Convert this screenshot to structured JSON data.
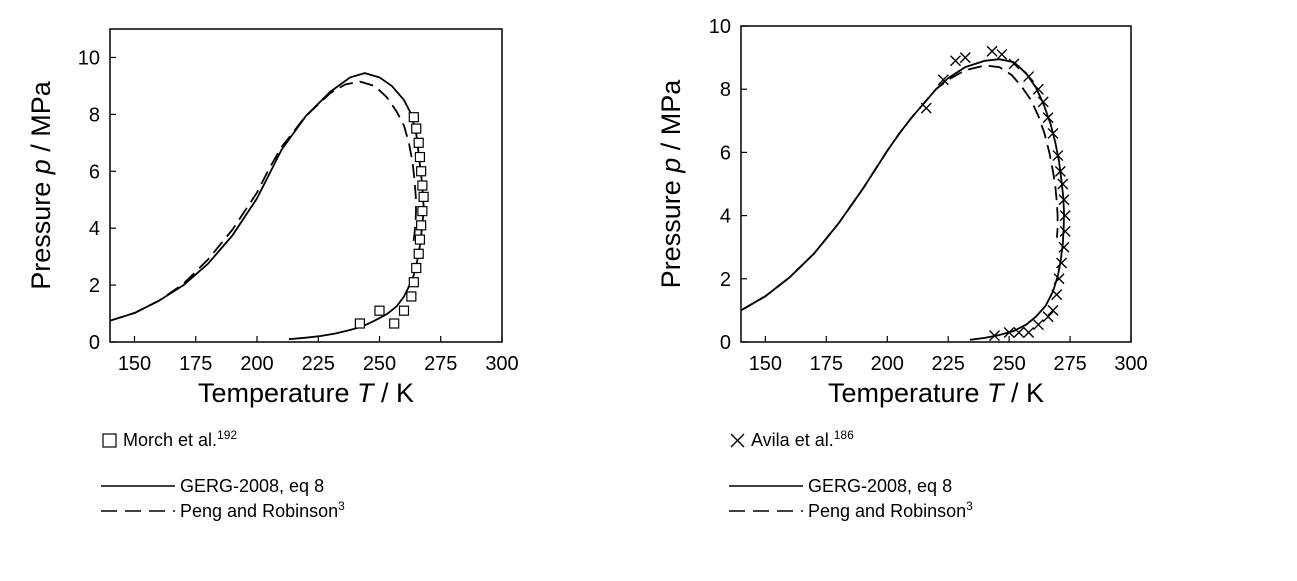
{
  "chart_data": [
    {
      "type": "line",
      "xlabel_prefix": "Temperature ",
      "xlabel_symbol": "T",
      "xlabel_unit": " / K",
      "ylabel_prefix": "Pressure ",
      "ylabel_symbol": "p",
      "ylabel_unit": " / MPa",
      "xlim": [
        140,
        300
      ],
      "ylim": [
        0,
        11
      ],
      "xticks": [
        "150",
        "175",
        "200",
        "225",
        "250",
        "275",
        "300"
      ],
      "yticks": [
        "0",
        "2",
        "4",
        "6",
        "8",
        "10"
      ],
      "series": [
        {
          "style": "solid",
          "x": [
            140,
            150,
            160,
            170,
            180,
            190,
            200,
            205,
            210,
            220,
            230,
            238,
            244,
            250,
            255,
            260,
            263,
            265,
            266,
            267,
            267.5,
            268,
            267.8,
            267.3,
            266.7,
            266,
            265,
            264,
            262,
            260,
            257,
            253,
            248,
            243,
            238,
            232,
            226,
            220,
            213
          ],
          "y": [
            0.75,
            1.02,
            1.45,
            2.0,
            2.75,
            3.75,
            5.05,
            5.9,
            6.75,
            7.95,
            8.8,
            9.3,
            9.45,
            9.3,
            9.0,
            8.5,
            8.0,
            7.3,
            6.6,
            5.9,
            5.4,
            4.8,
            4.4,
            4.0,
            3.5,
            3.1,
            2.7,
            2.35,
            1.95,
            1.6,
            1.25,
            0.98,
            0.75,
            0.55,
            0.42,
            0.3,
            0.21,
            0.15,
            0.1
          ]
        },
        {
          "style": "dashed",
          "x": [
            140,
            150,
            160,
            170,
            180,
            190,
            200,
            205,
            210,
            220,
            230,
            236,
            242,
            248,
            253,
            257,
            260,
            262,
            263.5,
            264.3,
            264.8,
            264.9,
            264.7,
            264.3,
            263.8
          ],
          "y": [
            0.75,
            1.02,
            1.45,
            2.05,
            2.9,
            3.95,
            5.25,
            6.1,
            6.85,
            7.95,
            8.75,
            9.05,
            9.15,
            9.0,
            8.6,
            8.1,
            7.6,
            7.0,
            6.3,
            5.7,
            5.1,
            4.6,
            4.2,
            3.8,
            3.5
          ]
        }
      ],
      "markers": {
        "shape": "square",
        "x": [
          264,
          265,
          266,
          266.5,
          267,
          267.5,
          268,
          267.5,
          267,
          266.5,
          266,
          265,
          264,
          263,
          260,
          256,
          250,
          242
        ],
        "y": [
          7.9,
          7.5,
          7.0,
          6.5,
          6.0,
          5.5,
          5.1,
          4.6,
          4.1,
          3.6,
          3.1,
          2.6,
          2.1,
          1.6,
          1.1,
          0.65,
          1.1,
          0.65
        ]
      },
      "legend": {
        "data_label": "Morch et al.",
        "data_ref": "192",
        "solid_label": "GERG-2008, eq 8",
        "dashed_label": "Peng and Robinson",
        "dashed_ref": "3"
      }
    },
    {
      "type": "line",
      "xlabel_prefix": "Temperature ",
      "xlabel_symbol": "T",
      "xlabel_unit": " / K",
      "ylabel_prefix": "Pressure ",
      "ylabel_symbol": "p",
      "ylabel_unit": " / MPa",
      "xlim": [
        140,
        300
      ],
      "ylim": [
        0,
        10
      ],
      "xticks": [
        "150",
        "175",
        "200",
        "225",
        "250",
        "275",
        "300"
      ],
      "yticks": [
        "0",
        "2",
        "4",
        "6",
        "8",
        "10"
      ],
      "series": [
        {
          "style": "solid",
          "x": [
            140,
            150,
            160,
            170,
            180,
            190,
            200,
            205,
            210,
            215,
            220,
            225,
            232,
            240,
            246,
            252,
            257,
            261,
            264,
            267,
            269,
            270.5,
            271.5,
            272.2,
            272.5,
            272.4,
            272,
            271.2,
            270,
            268,
            265,
            261,
            257,
            252,
            246,
            240,
            234
          ],
          "y": [
            1.0,
            1.45,
            2.05,
            2.8,
            3.75,
            4.85,
            6.05,
            6.6,
            7.1,
            7.55,
            8.0,
            8.35,
            8.7,
            8.9,
            8.95,
            8.85,
            8.5,
            8.05,
            7.55,
            6.9,
            6.3,
            5.7,
            5.1,
            4.6,
            4.1,
            3.6,
            3.1,
            2.6,
            2.1,
            1.6,
            1.15,
            0.8,
            0.55,
            0.35,
            0.22,
            0.13,
            0.07
          ]
        },
        {
          "style": "dashed",
          "x": [
            140,
            150,
            160,
            170,
            180,
            190,
            200,
            205,
            210,
            215,
            220,
            225,
            232,
            240,
            246,
            251,
            255,
            259,
            262,
            264.5,
            266.5,
            268,
            269,
            269.6,
            269.9,
            269.9,
            269.6
          ],
          "y": [
            1.0,
            1.45,
            2.05,
            2.8,
            3.75,
            4.85,
            6.05,
            6.6,
            7.1,
            7.55,
            8.0,
            8.3,
            8.6,
            8.75,
            8.7,
            8.45,
            8.1,
            7.65,
            7.15,
            6.6,
            6.0,
            5.4,
            4.9,
            4.4,
            4.0,
            3.6,
            3.3
          ]
        }
      ],
      "markers": {
        "shape": "cross",
        "x": [
          216,
          223,
          228,
          232,
          243,
          247,
          252,
          258,
          262,
          264,
          266,
          268,
          270,
          271,
          272,
          272.5,
          273,
          273,
          272.5,
          271.5,
          270.5,
          269.5,
          268,
          266,
          262,
          258,
          254,
          250,
          244
        ],
        "y": [
          7.4,
          8.3,
          8.9,
          9.0,
          9.2,
          9.1,
          8.8,
          8.4,
          8.0,
          7.6,
          7.1,
          6.6,
          5.9,
          5.4,
          5.0,
          4.5,
          4.0,
          3.5,
          3.0,
          2.5,
          2.0,
          1.5,
          1.0,
          0.8,
          0.55,
          0.3,
          0.3,
          0.3,
          0.2
        ]
      },
      "legend": {
        "data_label": "Avila et al.",
        "data_ref": "186",
        "solid_label": "GERG-2008, eq 8",
        "dashed_label": "Peng and Robinson",
        "dashed_ref": "3"
      }
    }
  ]
}
